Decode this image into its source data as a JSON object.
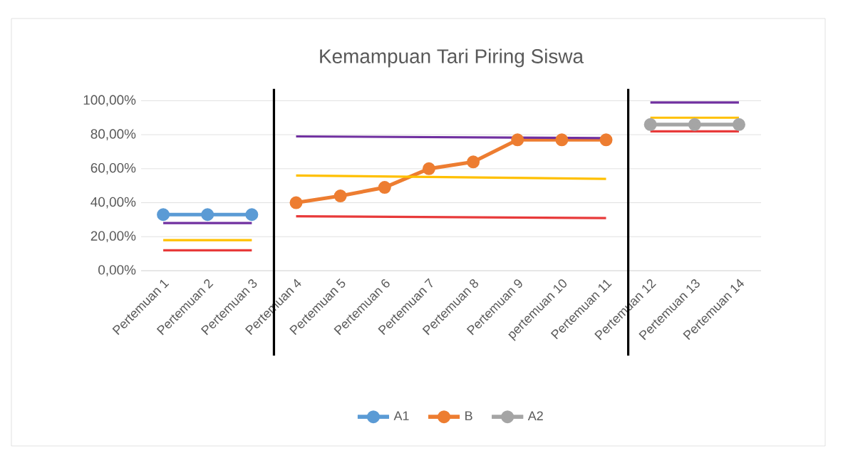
{
  "chart_data": {
    "type": "line",
    "title": "Kemampuan Tari Piring Siswa",
    "categories": [
      "Pertemuan 1",
      "Pertemuan 2",
      "Pertemuan 3",
      "Pertemuan 4",
      "Pertemuan 5",
      "Pertemuan 6",
      "Pertemuan 7",
      "Pertemuan 8",
      "Pertemuan 9",
      "pertemuan 10",
      "Pertemuan 11",
      "Pertemuan 12",
      "Pertemuan 13",
      "Pertemuan 14"
    ],
    "series": [
      {
        "name": "A1",
        "color": "#5b9bd5",
        "values": [
          33,
          33,
          33,
          null,
          null,
          null,
          null,
          null,
          null,
          null,
          null,
          null,
          null,
          null
        ]
      },
      {
        "name": "B",
        "color": "#ed7d31",
        "values": [
          null,
          null,
          null,
          40,
          44,
          49,
          60,
          64,
          77,
          77,
          77,
          null,
          null,
          null
        ]
      },
      {
        "name": "A2",
        "color": "#a5a5a5",
        "values": [
          null,
          null,
          null,
          null,
          null,
          null,
          null,
          null,
          null,
          null,
          null,
          86,
          86,
          86
        ]
      },
      {
        "color": "#7030a0",
        "marker": "none",
        "values": [
          28,
          28,
          28,
          null,
          null,
          null,
          null,
          null,
          null,
          null,
          null,
          null,
          null,
          null
        ]
      },
      {
        "color": "#ffc000",
        "marker": "none",
        "values": [
          18,
          18,
          18,
          null,
          null,
          null,
          null,
          null,
          null,
          null,
          null,
          null,
          null,
          null
        ]
      },
      {
        "color": "#e83a3a",
        "marker": "none",
        "values": [
          12,
          12,
          12,
          null,
          null,
          null,
          null,
          null,
          null,
          null,
          null,
          null,
          null,
          null
        ]
      },
      {
        "color": "#7030a0",
        "marker": "none",
        "values": [
          null,
          null,
          null,
          79,
          null,
          null,
          null,
          null,
          null,
          null,
          78,
          null,
          null,
          null
        ]
      },
      {
        "color": "#ffc000",
        "marker": "none",
        "values": [
          null,
          null,
          null,
          56,
          null,
          null,
          null,
          null,
          null,
          null,
          54,
          null,
          null,
          null
        ]
      },
      {
        "color": "#e83a3a",
        "marker": "none",
        "values": [
          null,
          null,
          null,
          32,
          null,
          null,
          null,
          null,
          null,
          null,
          31,
          null,
          null,
          null
        ]
      },
      {
        "color": "#7030a0",
        "marker": "none",
        "values": [
          null,
          null,
          null,
          null,
          null,
          null,
          null,
          null,
          null,
          null,
          null,
          99,
          99,
          99
        ]
      },
      {
        "color": "#ffc000",
        "marker": "none",
        "values": [
          null,
          null,
          null,
          null,
          null,
          null,
          null,
          null,
          null,
          null,
          null,
          90,
          90,
          90
        ]
      },
      {
        "color": "#e83a3a",
        "marker": "none",
        "values": [
          null,
          null,
          null,
          null,
          null,
          null,
          null,
          null,
          null,
          null,
          null,
          82,
          82,
          82
        ]
      }
    ],
    "ylim": [
      0,
      100
    ],
    "yticks": [
      {
        "value": 0,
        "label": "0,00%"
      },
      {
        "value": 20,
        "label": "20,00%"
      },
      {
        "value": 40,
        "label": "40,00%"
      },
      {
        "value": 60,
        "label": "60,00%"
      },
      {
        "value": 80,
        "label": "80,00%"
      },
      {
        "value": 100,
        "label": "100,00%"
      }
    ],
    "grid": "y",
    "legend": "bottom",
    "marker": "circle",
    "line_style": "solid"
  }
}
